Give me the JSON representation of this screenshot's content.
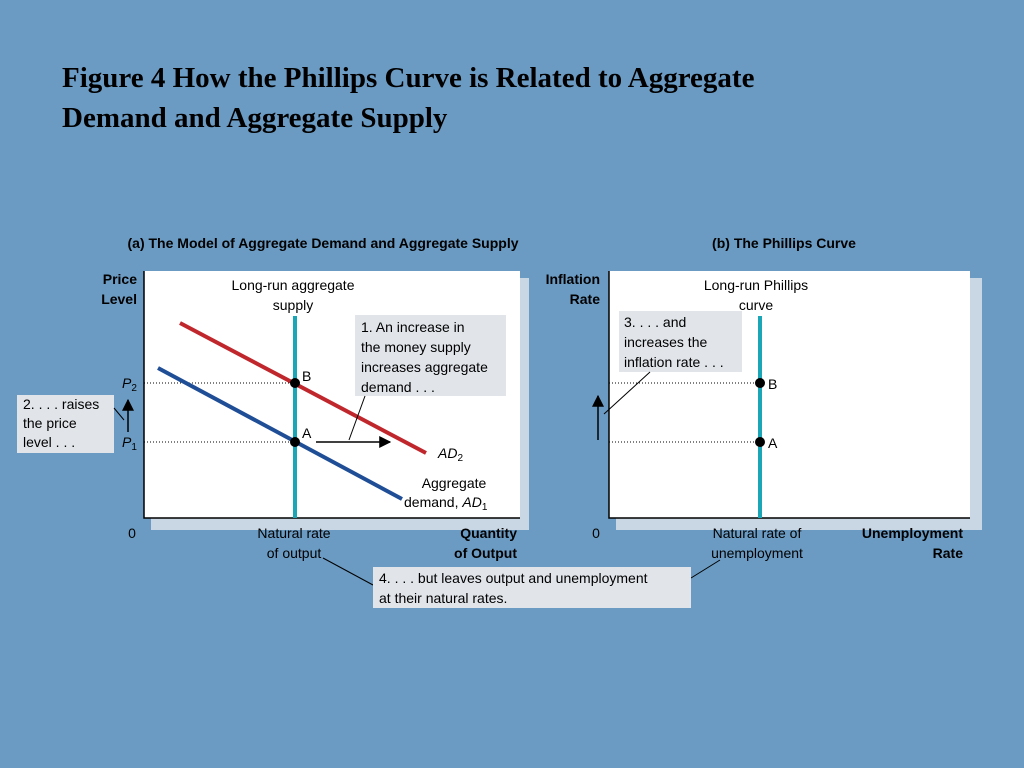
{
  "header": {
    "title": [
      "Figure 4 How the Phillips Curve is Related to Aggregate",
      "Demand and Aggregate Supply"
    ]
  },
  "panels": [
    {
      "title": "(a) The Model of Aggregate Demand and Aggregate Supply",
      "y_label": [
        "Price",
        "Level"
      ],
      "x_label": [
        "Quantity",
        "of Output"
      ],
      "origin": "0",
      "vertical_curve": [
        "Long-run aggregate",
        "supply"
      ],
      "natural_label": [
        "Natural rate",
        "of output"
      ],
      "points": [
        "B",
        "A"
      ],
      "levels": [
        {
          "main": "P",
          "sub": "2"
        },
        {
          "main": "P",
          "sub": "1"
        }
      ],
      "curve_high": {
        "main": "AD",
        "sub": "2"
      },
      "curve_low": {
        "lines": [
          "Aggregate"
        ],
        "prefix": "demand, ",
        "main": "AD",
        "sub": "1"
      },
      "notes": [
        [
          "1. An increase in",
          "the money supply",
          "increases aggregate",
          "demand . . ."
        ],
        [
          "2. . . . raises",
          "the price",
          "level . . ."
        ]
      ]
    },
    {
      "title": "(b) The Phillips Curve",
      "y_label": [
        "Inflation",
        "Rate"
      ],
      "x_label": [
        "Unemployment",
        "Rate"
      ],
      "origin": "0",
      "vertical_curve": [
        "Long-run Phillips",
        "curve"
      ],
      "natural_label": [
        "Natural rate of",
        "unemployment"
      ],
      "points": [
        "B",
        "A"
      ],
      "notes": [
        [
          "3. . . . and",
          "increases the",
          "inflation rate . . ."
        ]
      ]
    }
  ],
  "footer_note": [
    "4. . . . but leaves output and unemployment",
    "at their natural rates."
  ]
}
